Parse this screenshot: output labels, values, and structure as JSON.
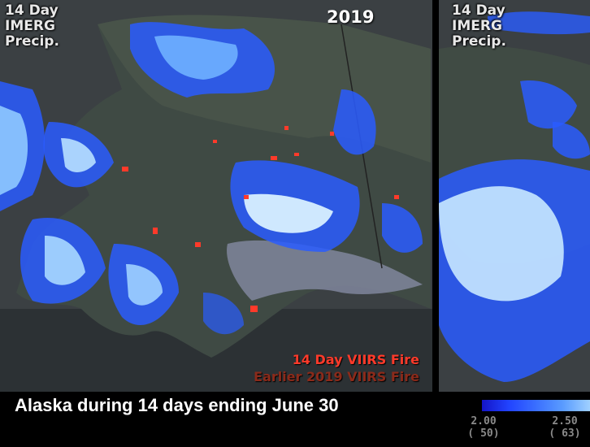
{
  "left_panel": {
    "label_lines": [
      "14 Day",
      "IMERG",
      "Precip."
    ],
    "year": "2019"
  },
  "right_panel": {
    "label_lines": [
      "14 Day",
      "IMERG",
      "Precip."
    ]
  },
  "fire_legend": {
    "current": "14 Day VIIRS Fire",
    "earlier": "Earlier 2019 VIIRS Fire",
    "current_color": "#ff3a2a",
    "earlier_color": "#8b2a1a"
  },
  "caption": "Alaska during 14 days ending June 30",
  "colorbar": {
    "left_value": "2.00",
    "left_sub": "( 50)",
    "right_value": "2.50",
    "right_sub": "( 63)",
    "colors": [
      "#1414c8",
      "#2244ff",
      "#3a6fff",
      "#5a9cff",
      "#9fd0ff"
    ]
  }
}
